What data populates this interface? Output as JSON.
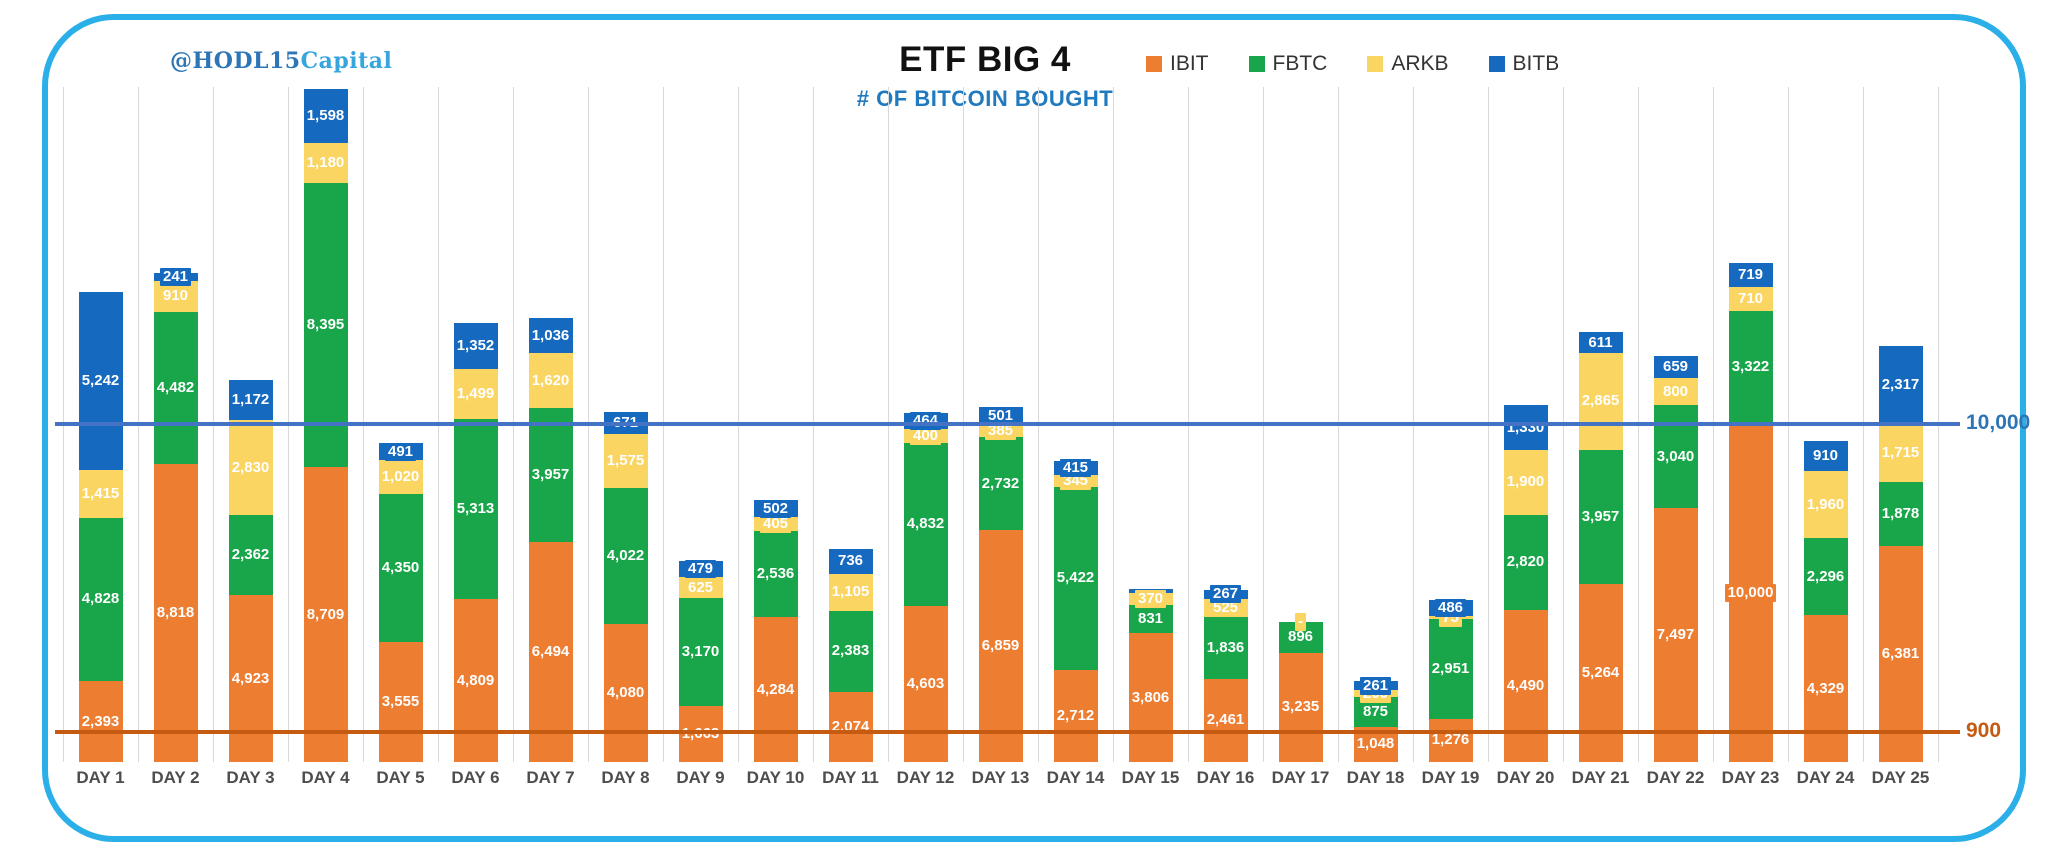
{
  "watermark": {
    "part1": "@HODL15",
    "part2": "Capital"
  },
  "header": {
    "title": "ETF BIG 4",
    "subtitle": "# OF BITCOIN BOUGHT"
  },
  "legend": [
    {
      "name": "IBIT",
      "color": "#ec7d31"
    },
    {
      "name": "FBTC",
      "color": "#19a64a"
    },
    {
      "name": "ARKB",
      "color": "#fbd562"
    },
    {
      "name": "BITB",
      "color": "#1569be"
    }
  ],
  "ref_lines": [
    {
      "label": "10,000",
      "value": 10000,
      "line_color": "#4472c4",
      "label_color": "#2e75b6"
    },
    {
      "label": "900",
      "value": 900,
      "line_color": "#c55a11",
      "label_color": "#c55a11"
    }
  ],
  "chart_data": {
    "type": "bar",
    "stacked": true,
    "title": "ETF BIG 4",
    "subtitle": "# OF BITCOIN BOUGHT",
    "xlabel": "",
    "ylabel": "",
    "ylim": [
      0,
      20000
    ],
    "grid": "vertical-only",
    "legend_position": "top-right",
    "categories": [
      "DAY 1",
      "DAY 2",
      "DAY 3",
      "DAY 4",
      "DAY 5",
      "DAY 6",
      "DAY 7",
      "DAY 8",
      "DAY 9",
      "DAY 10",
      "DAY 11",
      "DAY 12",
      "DAY 13",
      "DAY 14",
      "DAY 15",
      "DAY 16",
      "DAY 17",
      "DAY 18",
      "DAY 19",
      "DAY 20",
      "DAY 21",
      "DAY 22",
      "DAY 23",
      "DAY 24",
      "DAY 25"
    ],
    "series": [
      {
        "name": "IBIT",
        "color": "#ec7d31",
        "values": [
          2393,
          8818,
          4923,
          8709,
          3555,
          4809,
          6494,
          4080,
          1663,
          4284,
          2074,
          4603,
          6859,
          2712,
          3806,
          2461,
          3235,
          1048,
          1276,
          4490,
          5264,
          7497,
          10000,
          4329,
          6381
        ],
        "labels": [
          "2,393",
          "8,818",
          "4,923",
          "8,709",
          "3,555",
          "4,809",
          "6,494",
          "4,080",
          "1,663",
          "4,284",
          "2,074",
          "4,603",
          "6,859",
          "2,712",
          "3,806",
          "2,461",
          "3,235",
          "1,048",
          "1,276",
          "4,490",
          "5,264",
          "7,497",
          "10,000",
          "4,329",
          "6,381"
        ]
      },
      {
        "name": "FBTC",
        "color": "#19a64a",
        "values": [
          4828,
          4482,
          2362,
          8395,
          4350,
          5313,
          3957,
          4022,
          3170,
          2536,
          2383,
          4832,
          2732,
          5422,
          831,
          1836,
          896,
          875,
          2951,
          2820,
          3957,
          3040,
          3322,
          2296,
          1878
        ],
        "labels": [
          "4,828",
          "4,482",
          "2,362",
          "8,395",
          "4,350",
          "5,313",
          "3,957",
          "4,022",
          "3,170",
          "2,536",
          "2,383",
          "4,832",
          "2,732",
          "5,422",
          "831",
          "1,836",
          "896",
          "875",
          "2,951",
          "2,820",
          "3,957",
          "3,040",
          "3,322",
          "2,296",
          "1,878"
        ]
      },
      {
        "name": "ARKB",
        "color": "#fbd562",
        "values": [
          1415,
          910,
          2830,
          1180,
          1020,
          1499,
          1620,
          1575,
          625,
          405,
          1105,
          400,
          385,
          345,
          370,
          525,
          0,
          200,
          75,
          1900,
          2865,
          800,
          710,
          1960,
          1715
        ],
        "labels": [
          "1,415",
          "910",
          "2,830",
          "1,180",
          "1,020",
          "1,499",
          "1,620",
          "1,575",
          "625",
          "405",
          "1,105",
          "400",
          "385",
          "345",
          "370",
          "525",
          "-",
          "200",
          "75",
          "1,900",
          "2,865",
          "800",
          "710",
          "1,960",
          "1,715"
        ]
      },
      {
        "name": "BITB",
        "color": "#1569be",
        "values": [
          5242,
          241,
          1172,
          1598,
          491,
          1352,
          1036,
          671,
          479,
          502,
          736,
          464,
          501,
          415,
          100,
          267,
          0,
          261,
          486,
          1330,
          611,
          659,
          719,
          910,
          2317
        ],
        "labels": [
          "5,242",
          "241",
          "1,172",
          "1,598",
          "491",
          "1,352",
          "1,036",
          "671",
          "479",
          "502",
          "736",
          "464",
          "501",
          "415",
          "",
          "267",
          "",
          "261",
          "486",
          "1,330",
          "611",
          "659",
          "719",
          "910",
          "2,317"
        ]
      }
    ],
    "reference_lines": [
      {
        "label": "10,000",
        "value": 10000
      },
      {
        "label": "900",
        "value": 900
      }
    ]
  }
}
